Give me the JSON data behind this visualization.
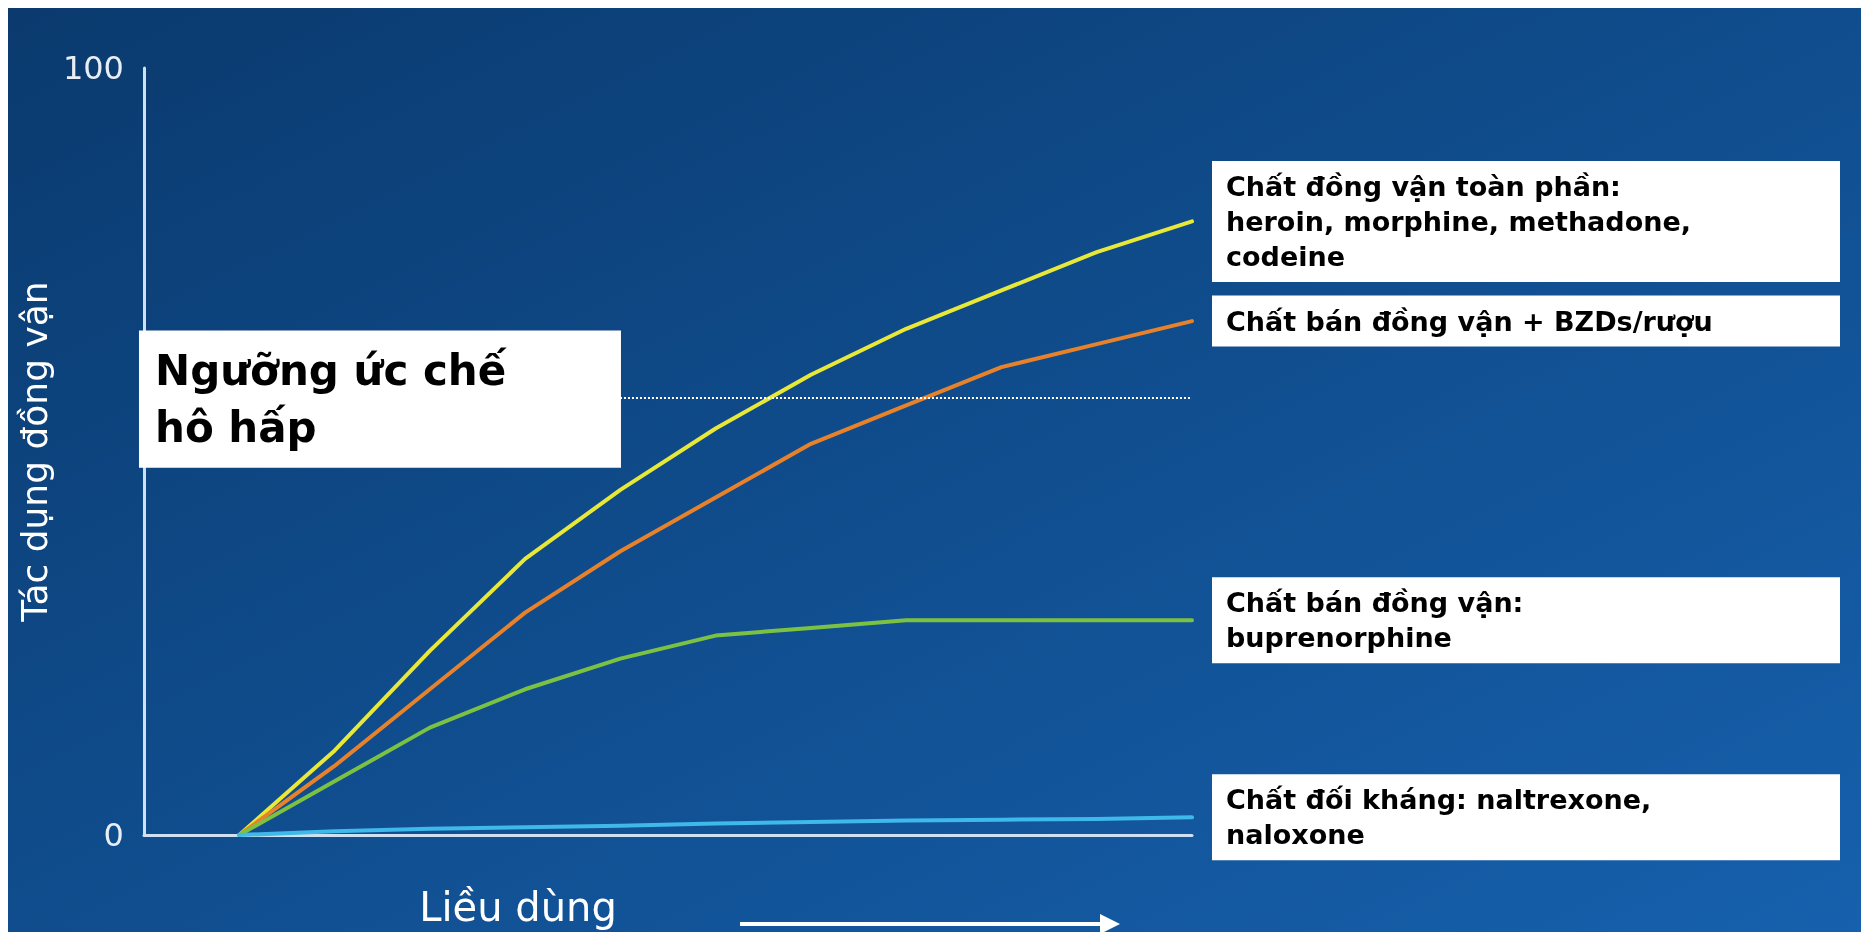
{
  "chart_data": {
    "type": "line",
    "xlabel": "Liều dùng",
    "ylabel": "Tác dụng đồng vận",
    "categories": [
      null,
      null,
      null,
      null,
      null,
      null,
      null,
      null,
      null,
      null,
      null,
      null
    ],
    "ylim": [
      0,
      100
    ],
    "yticks": [
      0,
      100
    ],
    "tick_labels": "y",
    "grid": false,
    "legend": false,
    "marker": "none",
    "line_style": "solid",
    "series": [
      {
        "name": "Chất đồng vận toàn phần: heroin, morphine, methadone, codeine",
        "color": "#e8e838",
        "values": [
          null,
          0,
          11,
          24,
          36,
          45,
          53,
          60,
          66,
          71,
          76,
          80
        ]
      },
      {
        "name": "Chất bán đồng vận + BZDs/rượu",
        "color": "#e8822a",
        "values": [
          null,
          0,
          9,
          19,
          29,
          37,
          44,
          51,
          56,
          61,
          64,
          67
        ]
      },
      {
        "name": "Chất bán đồng vận: buprenorphine",
        "color": "#7cc242",
        "values": [
          null,
          0,
          7,
          14,
          19,
          23,
          26,
          27,
          28,
          28,
          28,
          28
        ]
      },
      {
        "name": "Chất đối kháng: naltrexone, naloxone",
        "color": "#3fb8ea",
        "values": [
          null,
          0,
          0.5,
          0.8,
          1,
          1.2,
          1.5,
          1.7,
          1.9,
          2,
          2.1,
          2.3
        ]
      }
    ],
    "ref_lines": [
      {
        "axis": "y",
        "value": 57,
        "label": "Ngưỡng ức chế hô hấp",
        "color": "#ffffff",
        "line_style": "dotted"
      }
    ]
  }
}
